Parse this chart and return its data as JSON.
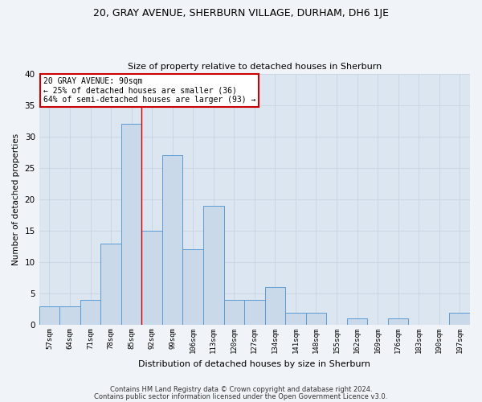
{
  "title1": "20, GRAY AVENUE, SHERBURN VILLAGE, DURHAM, DH6 1JE",
  "title2": "Size of property relative to detached houses in Sherburn",
  "xlabel": "Distribution of detached houses by size in Sherburn",
  "ylabel": "Number of detached properties",
  "bar_labels": [
    "57sqm",
    "64sqm",
    "71sqm",
    "78sqm",
    "85sqm",
    "92sqm",
    "99sqm",
    "106sqm",
    "113sqm",
    "120sqm",
    "127sqm",
    "134sqm",
    "141sqm",
    "148sqm",
    "155sqm",
    "162sqm",
    "169sqm",
    "176sqm",
    "183sqm",
    "190sqm",
    "197sqm"
  ],
  "bar_values": [
    3,
    3,
    4,
    13,
    32,
    15,
    27,
    12,
    19,
    4,
    4,
    6,
    2,
    2,
    0,
    1,
    0,
    1,
    0,
    0,
    2
  ],
  "bar_color": "#c9d9ea",
  "bar_edge_color": "#5b9bd5",
  "grid_color": "#c8d4e3",
  "background_color": "#dce6f0",
  "fig_background_color": "#f0f4f8",
  "red_line_x": 4.5,
  "annotation_line1": "20 GRAY AVENUE: 90sqm",
  "annotation_line2": "← 25% of detached houses are smaller (36)",
  "annotation_line3": "64% of semi-detached houses are larger (93) →",
  "annotation_box_facecolor": "#ffffff",
  "annotation_box_edgecolor": "#cc0000",
  "footnote1": "Contains HM Land Registry data © Crown copyright and database right 2024.",
  "footnote2": "Contains public sector information licensed under the Open Government Licence v3.0.",
  "ylim": [
    0,
    40
  ],
  "yticks": [
    0,
    5,
    10,
    15,
    20,
    25,
    30,
    35,
    40
  ]
}
